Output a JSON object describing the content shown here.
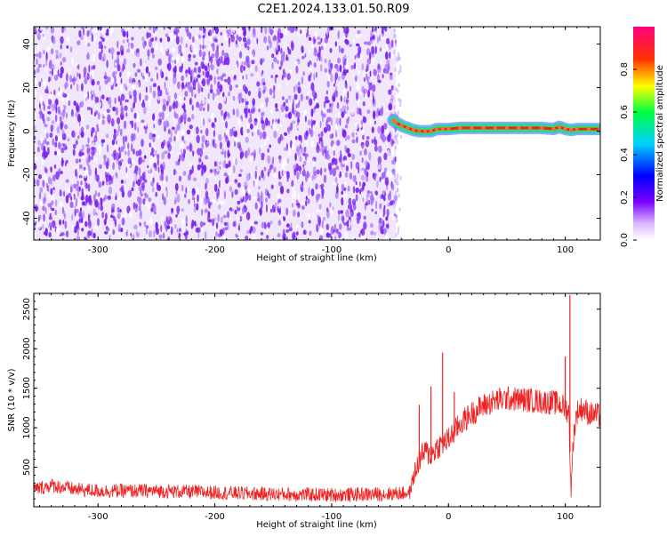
{
  "title": "C2E1.2024.133.01.50.R09",
  "chart_data": [
    {
      "type": "heatmap",
      "xlabel": "Height of straight line (km)",
      "ylabel": "Frequency (Hz)",
      "xlim": [
        -355,
        130
      ],
      "ylim": [
        -50,
        48
      ],
      "x_ticks": [
        -300,
        -200,
        -100,
        0,
        100
      ],
      "y_ticks": [
        -40,
        -20,
        0,
        20,
        40
      ],
      "noise_region_x": [
        -355,
        -45
      ],
      "signal_trace": {
        "x": [
          -47,
          -45,
          -40,
          -35,
          -30,
          -25,
          -20,
          -15,
          -10,
          -5,
          0,
          10,
          20,
          30,
          40,
          50,
          60,
          70,
          80,
          90,
          95,
          100,
          105,
          110,
          120,
          130
        ],
        "freq": [
          5,
          4,
          2.5,
          1.5,
          0.5,
          0,
          0,
          0,
          1,
          1,
          1,
          1.5,
          1.5,
          1.5,
          1.5,
          1.5,
          1.5,
          1.5,
          1.5,
          1,
          2,
          1,
          0.5,
          1,
          1,
          1
        ]
      },
      "colorbar": {
        "label": "Normalized spectral amplitude",
        "ticks": [
          "0.0",
          "0.2",
          "0.4",
          "0.6",
          "0.8"
        ],
        "range": [
          0,
          1
        ]
      },
      "colors": {
        "noise": "#7a22ee",
        "noise_light": "#e4d4fb",
        "trace_core": "#ee2020",
        "trace_mid": "#33ee22",
        "trace_outer": "#22cccc",
        "trace_edge": "#3366ee"
      }
    },
    {
      "type": "line",
      "xlabel": "Height of straight line (km)",
      "ylabel": "SNR (10 * v/v)",
      "xlim": [
        -355,
        130
      ],
      "ylim": [
        0,
        2700
      ],
      "x_ticks": [
        -300,
        -200,
        -100,
        0,
        100
      ],
      "y_ticks": [
        500,
        1000,
        1500,
        2000,
        2500
      ],
      "series_color": "#ee2222",
      "series": [
        {
          "x": [
            -355,
            -340,
            -320,
            -300,
            -250,
            -200,
            -150,
            -100,
            -60,
            -40,
            -33,
            -30,
            -28,
            -25,
            -20,
            -15,
            -10,
            -5,
            0,
            5,
            10,
            20,
            30,
            40,
            50,
            60,
            70,
            80,
            90,
            95,
            100,
            103,
            105,
            107,
            110,
            115,
            120,
            130
          ],
          "values": [
            220,
            270,
            220,
            200,
            200,
            180,
            160,
            150,
            160,
            170,
            180,
            380,
            450,
            600,
            700,
            650,
            750,
            800,
            850,
            950,
            1050,
            1180,
            1280,
            1340,
            1370,
            1360,
            1350,
            1330,
            1320,
            1300,
            1250,
            1200,
            180,
            900,
            1200,
            1250,
            1180,
            1150
          ]
        }
      ],
      "spikes": [
        {
          "x": -25,
          "value": 1290
        },
        {
          "x": -15,
          "value": 1520
        },
        {
          "x": -5,
          "value": 1950
        },
        {
          "x": 5,
          "value": 1450
        },
        {
          "x": 104,
          "value": 2680
        },
        {
          "x": 100,
          "value": 1900
        }
      ]
    }
  ]
}
